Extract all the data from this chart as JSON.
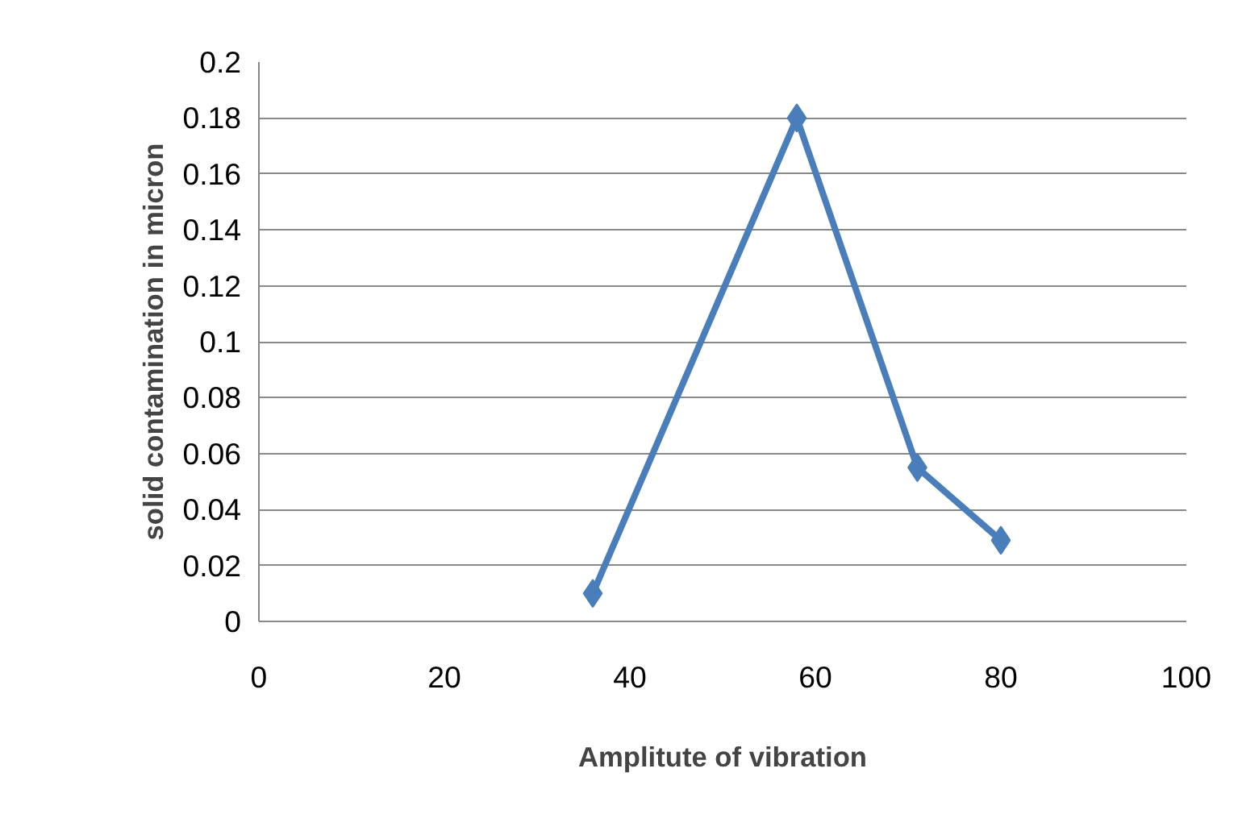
{
  "chart_data": {
    "type": "line",
    "xlabel": "Amplitute of vibration",
    "ylabel": "solid contamination in micron",
    "x": [
      36,
      58,
      71,
      80
    ],
    "series": [
      {
        "color": "#4a7ebb",
        "values": [
          0.01,
          0.18,
          0.055,
          0.029
        ]
      }
    ],
    "xlim": [
      0,
      100
    ],
    "xticks": [
      0,
      20,
      40,
      60,
      80,
      100
    ],
    "ylim": [
      0,
      0.2
    ],
    "yticks": [
      0,
      0.02,
      0.04,
      0.06,
      0.08,
      0.1,
      0.12,
      0.14,
      0.16,
      0.18,
      0.2
    ],
    "grid": "y",
    "marker": "diamond",
    "line_style": "solid"
  }
}
